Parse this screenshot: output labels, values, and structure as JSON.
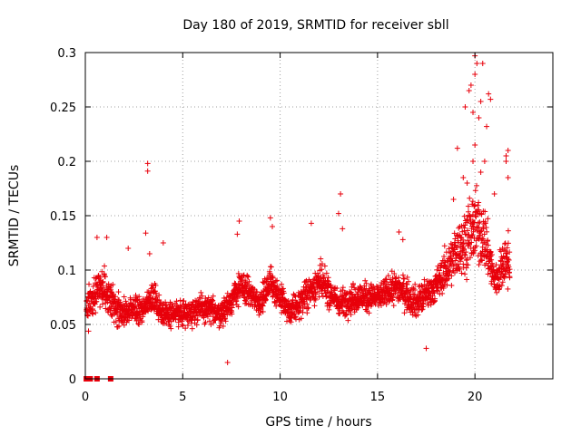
{
  "chart_data": {
    "type": "scatter",
    "title": "Day 180 of 2019, SRMTID for receiver sbll",
    "xlabel": "GPS time / hours",
    "ylabel": "SRMTID / TECUs",
    "xlim": [
      0,
      24
    ],
    "ylim": [
      0,
      0.3
    ],
    "x_ticks": [
      0,
      5,
      10,
      15,
      20
    ],
    "y_ticks": [
      0,
      0.05,
      0.1,
      0.15,
      0.2,
      0.25,
      0.3
    ],
    "x_tick_labels": [
      "0",
      "5",
      "10",
      "15",
      "20"
    ],
    "y_tick_labels": [
      "0",
      "0.05",
      "0.1",
      "0.15",
      "0.2",
      "0.25",
      "0.3"
    ],
    "grid": true,
    "marker": "+",
    "marker_color": "#e8000b",
    "series": [
      {
        "name": "SRMTID",
        "envelope": [
          {
            "x": 0.1,
            "mean": 0.065,
            "spread": 0.03
          },
          {
            "x": 0.5,
            "mean": 0.08,
            "spread": 0.03
          },
          {
            "x": 1.0,
            "mean": 0.085,
            "spread": 0.03
          },
          {
            "x": 1.5,
            "mean": 0.065,
            "spread": 0.025
          },
          {
            "x": 2.0,
            "mean": 0.06,
            "spread": 0.02
          },
          {
            "x": 3.0,
            "mean": 0.065,
            "spread": 0.02
          },
          {
            "x": 3.5,
            "mean": 0.075,
            "spread": 0.025
          },
          {
            "x": 4.0,
            "mean": 0.06,
            "spread": 0.02
          },
          {
            "x": 5.0,
            "mean": 0.06,
            "spread": 0.02
          },
          {
            "x": 6.0,
            "mean": 0.065,
            "spread": 0.02
          },
          {
            "x": 7.0,
            "mean": 0.06,
            "spread": 0.02
          },
          {
            "x": 8.0,
            "mean": 0.085,
            "spread": 0.025
          },
          {
            "x": 9.0,
            "mean": 0.07,
            "spread": 0.02
          },
          {
            "x": 9.5,
            "mean": 0.09,
            "spread": 0.025
          },
          {
            "x": 10.5,
            "mean": 0.06,
            "spread": 0.02
          },
          {
            "x": 11.5,
            "mean": 0.08,
            "spread": 0.025
          },
          {
            "x": 12.0,
            "mean": 0.09,
            "spread": 0.03
          },
          {
            "x": 13.0,
            "mean": 0.07,
            "spread": 0.02
          },
          {
            "x": 14.0,
            "mean": 0.075,
            "spread": 0.025
          },
          {
            "x": 15.0,
            "mean": 0.075,
            "spread": 0.02
          },
          {
            "x": 16.0,
            "mean": 0.085,
            "spread": 0.025
          },
          {
            "x": 17.0,
            "mean": 0.07,
            "spread": 0.025
          },
          {
            "x": 18.0,
            "mean": 0.085,
            "spread": 0.025
          },
          {
            "x": 19.0,
            "mean": 0.115,
            "spread": 0.04
          },
          {
            "x": 20.0,
            "mean": 0.14,
            "spread": 0.06
          },
          {
            "x": 20.5,
            "mean": 0.13,
            "spread": 0.05
          },
          {
            "x": 21.0,
            "mean": 0.09,
            "spread": 0.03
          },
          {
            "x": 21.7,
            "mean": 0.11,
            "spread": 0.04
          }
        ],
        "outliers": [
          [
            3.2,
            0.198
          ],
          [
            3.2,
            0.191
          ],
          [
            3.1,
            0.134
          ],
          [
            3.3,
            0.115
          ],
          [
            4.0,
            0.125
          ],
          [
            0.6,
            0.13
          ],
          [
            1.1,
            0.13
          ],
          [
            2.2,
            0.12
          ],
          [
            7.9,
            0.145
          ],
          [
            7.8,
            0.133
          ],
          [
            9.5,
            0.148
          ],
          [
            9.6,
            0.14
          ],
          [
            11.6,
            0.143
          ],
          [
            13.1,
            0.17
          ],
          [
            13.0,
            0.152
          ],
          [
            13.2,
            0.138
          ],
          [
            16.1,
            0.135
          ],
          [
            16.3,
            0.128
          ],
          [
            17.5,
            0.028
          ],
          [
            7.3,
            0.015
          ],
          [
            20.0,
            0.297
          ],
          [
            20.1,
            0.29
          ],
          [
            20.4,
            0.29
          ],
          [
            20.0,
            0.28
          ],
          [
            19.8,
            0.27
          ],
          [
            19.7,
            0.265
          ],
          [
            20.3,
            0.255
          ],
          [
            20.7,
            0.262
          ],
          [
            20.8,
            0.257
          ],
          [
            19.5,
            0.25
          ],
          [
            20.2,
            0.24
          ],
          [
            19.9,
            0.245
          ],
          [
            20.6,
            0.232
          ],
          [
            20.0,
            0.215
          ],
          [
            19.1,
            0.212
          ],
          [
            21.7,
            0.21
          ],
          [
            21.6,
            0.205
          ],
          [
            21.6,
            0.2
          ],
          [
            21.7,
            0.185
          ],
          [
            19.9,
            0.2
          ],
          [
            20.3,
            0.19
          ],
          [
            20.5,
            0.2
          ],
          [
            19.4,
            0.185
          ],
          [
            21.0,
            0.17
          ],
          [
            20.0,
            0.16
          ],
          [
            19.6,
            0.18
          ],
          [
            18.9,
            0.165
          ]
        ],
        "zero_points": [
          0.05,
          0.15,
          0.25,
          0.6,
          1.3
        ]
      }
    ]
  }
}
